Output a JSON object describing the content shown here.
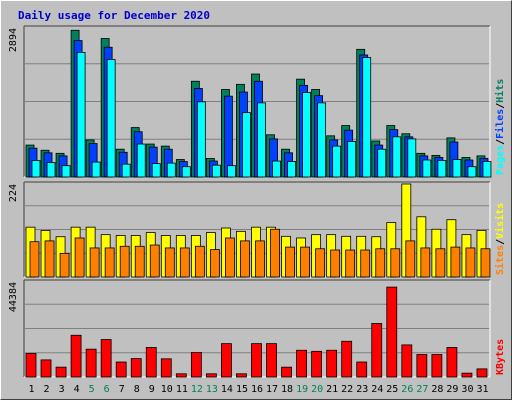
{
  "chart_data": {
    "type": "bar",
    "title": "Daily usage for December 2020",
    "colors": {
      "background": "#c0c0c0",
      "hits": "#00805c",
      "files": "#0040ff",
      "pages": "#00ffff",
      "visits": "#ffff00",
      "sites": "#ff8000",
      "kbytes": "#ff0000",
      "title": "#0000cc",
      "weekend_day": "#00805c"
    },
    "x": [
      "1",
      "2",
      "3",
      "4",
      "5",
      "6",
      "7",
      "8",
      "9",
      "10",
      "11",
      "12",
      "13",
      "14",
      "15",
      "16",
      "17",
      "18",
      "19",
      "20",
      "21",
      "22",
      "23",
      "24",
      "25",
      "26",
      "27",
      "28",
      "29",
      "30",
      "31"
    ],
    "weekend_days": [
      "5",
      "6",
      "12",
      "13",
      "19",
      "20",
      "26",
      "27"
    ],
    "panels": [
      {
        "name": "hits-files-pages",
        "ytick": "2894",
        "ylim": [
          0,
          2894
        ],
        "legend": [
          "Pages",
          "/",
          "Files",
          "/",
          "Hits"
        ],
        "series": [
          {
            "name": "Hits",
            "values": [
              620,
              520,
              460,
              2850,
              720,
              2690,
              540,
              960,
              640,
              600,
              340,
              1860,
              360,
              1700,
              1800,
              2000,
              820,
              540,
              1900,
              1700,
              800,
              1000,
              2480,
              700,
              1000,
              840,
              460,
              420,
              760,
              380,
              410
            ]
          },
          {
            "name": "Files",
            "values": [
              560,
              470,
              410,
              2650,
              650,
              2520,
              480,
              880,
              580,
              540,
              300,
              1720,
              310,
              1570,
              1650,
              1860,
              740,
              470,
              1780,
              1580,
              720,
              910,
              2370,
              620,
              920,
              780,
              410,
              380,
              680,
              330,
              360
            ]
          },
          {
            "name": "Pages",
            "values": [
              320,
              280,
              220,
              2420,
              290,
              2280,
              250,
              640,
              260,
              270,
              200,
              1460,
              230,
              220,
              1250,
              1440,
              310,
              300,
              1640,
              1440,
              600,
              690,
              2320,
              540,
              780,
              740,
              330,
              320,
              340,
              200,
              300
            ]
          }
        ]
      },
      {
        "name": "visits-sites",
        "ytick": "224",
        "ylim": [
          0,
          224
        ],
        "legend": [
          "Sites",
          "/",
          "Visits"
        ],
        "series": [
          {
            "name": "Visits",
            "values": [
              120,
              112,
              97,
              120,
              120,
              102,
              100,
              100,
              107,
              100,
              100,
              100,
              107,
              118,
              110,
              120,
              120,
              98,
              94,
              102,
              102,
              98,
              98,
              97,
              131,
              224,
              145,
              115,
              138,
              102,
              112
            ]
          },
          {
            "name": "Sites",
            "values": [
              85,
              87,
              57,
              94,
              70,
              70,
              74,
              74,
              77,
              70,
              70,
              74,
              66,
              94,
              87,
              87,
              115,
              72,
              72,
              68,
              65,
              65,
              65,
              68,
              68,
              87,
              70,
              68,
              72,
              70,
              68
            ]
          }
        ]
      },
      {
        "name": "kbytes",
        "ytick": "44384",
        "ylim": [
          0,
          44384
        ],
        "legend": [
          "KBytes"
        ],
        "series": [
          {
            "name": "KBytes",
            "values": [
              11000,
              8000,
              4600,
              19500,
              13000,
              17500,
              7000,
              8600,
              13800,
              8500,
              1500,
              11500,
              1500,
              15600,
              1500,
              15600,
              15600,
              4600,
              12500,
              12000,
              12500,
              16700,
              7000,
              25000,
              42000,
              15000,
              10500,
              10500,
              13800,
              1800,
              3800
            ]
          }
        ]
      }
    ]
  }
}
